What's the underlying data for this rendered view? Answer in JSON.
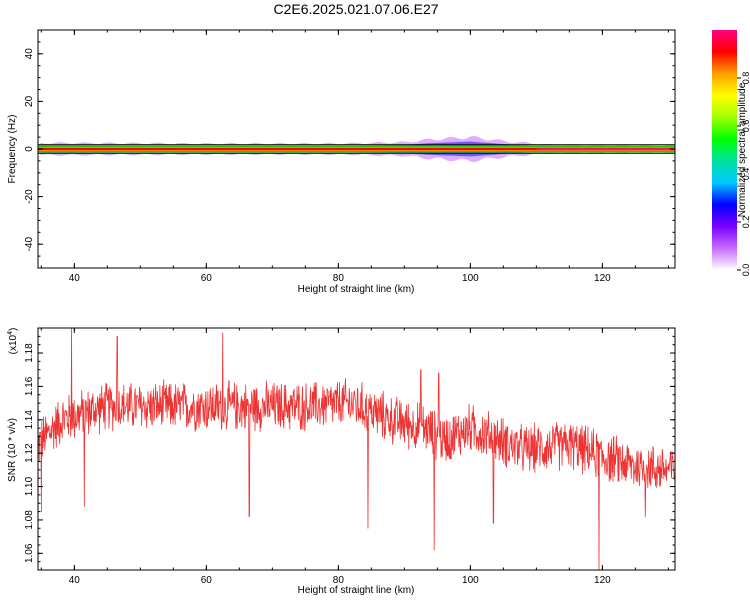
{
  "title": "C2E6.2025.021.07.06.E27",
  "colors": {
    "snr_line": "#ee3333",
    "frame": "#000000",
    "background": "#ffffff"
  },
  "chart_data": [
    {
      "type": "heatmap",
      "xlabel": "Height of straight line (km)",
      "ylabel": "Frequency (Hz)",
      "xlim": [
        34.5,
        131
      ],
      "ylim": [
        -50,
        50
      ],
      "x_ticks": [
        "40",
        "60",
        "80",
        "100",
        "120"
      ],
      "x_tick_values": [
        40,
        60,
        80,
        100,
        120
      ],
      "y_ticks": [
        "40",
        "20",
        "0",
        "-20",
        "-40"
      ],
      "y_tick_values": [
        40,
        20,
        0,
        -20,
        -40
      ],
      "colorbar": {
        "label": "Normalized spectral amplitude",
        "range": [
          0,
          1
        ],
        "ticks": [
          "0.0",
          "0.2",
          "0.4",
          "0.6",
          "0.8"
        ],
        "tick_values": [
          0,
          0.2,
          0.4,
          0.6,
          0.8
        ],
        "colormap": [
          "#ffffff",
          "#c86bff",
          "#7a00ff",
          "#0000ff",
          "#00c8ff",
          "#00e0a0",
          "#00ff00",
          "#a0ff00",
          "#ffff00",
          "#ffa000",
          "#ff0000",
          "#ff0080"
        ]
      },
      "band": {
        "center_hz": 0,
        "main_halfwidth_hz": 1.5,
        "spread_profile": [
          {
            "x": 35,
            "halfwidth_hz": 2.5,
            "peak": 0.35
          },
          {
            "x": 40,
            "halfwidth_hz": 2.5,
            "peak": 0.35
          },
          {
            "x": 60,
            "halfwidth_hz": 2.2,
            "peak": 0.3
          },
          {
            "x": 80,
            "halfwidth_hz": 2.2,
            "peak": 0.3
          },
          {
            "x": 90,
            "halfwidth_hz": 2.8,
            "peak": 0.4
          },
          {
            "x": 94,
            "halfwidth_hz": 4.0,
            "peak": 0.5
          },
          {
            "x": 100,
            "halfwidth_hz": 5.0,
            "peak": 0.55
          },
          {
            "x": 106,
            "halfwidth_hz": 3.0,
            "peak": 0.35
          },
          {
            "x": 112,
            "halfwidth_hz": 1.8,
            "peak": 0.2
          },
          {
            "x": 131,
            "halfwidth_hz": 1.5,
            "peak": 0.1
          }
        ]
      }
    },
    {
      "type": "line",
      "xlabel": "Height of straight line (km)",
      "ylabel": "SNR (10 * v/v)",
      "y_multiplier": "(x10",
      "y_multiplier_exp": "4",
      "y_multiplier_close": ")",
      "xlim": [
        34.5,
        131
      ],
      "ylim": [
        1.05,
        1.195
      ],
      "x_ticks": [
        "40",
        "60",
        "80",
        "100",
        "120"
      ],
      "x_tick_values": [
        40,
        60,
        80,
        100,
        120
      ],
      "y_ticks": [
        "1.06",
        "1.08",
        "1.10",
        "1.12",
        "1.14",
        "1.16",
        "1.18"
      ],
      "y_tick_values": [
        1.06,
        1.08,
        1.1,
        1.12,
        1.14,
        1.16,
        1.18
      ],
      "series": [
        {
          "color": "#ee3333",
          "trend": [
            [
              34.5,
              1.125
            ],
            [
              38,
              1.14
            ],
            [
              45,
              1.148
            ],
            [
              55,
              1.148
            ],
            [
              65,
              1.148
            ],
            [
              75,
              1.148
            ],
            [
              82,
              1.15
            ],
            [
              88,
              1.14
            ],
            [
              93,
              1.135
            ],
            [
              96,
              1.128
            ],
            [
              100,
              1.135
            ],
            [
              108,
              1.122
            ],
            [
              115,
              1.125
            ],
            [
              120,
              1.118
            ],
            [
              125,
              1.112
            ],
            [
              131,
              1.11
            ]
          ],
          "noise_amplitude": 0.014,
          "spikes": [
            {
              "x": 35.0,
              "y": 1.085
            },
            {
              "x": 39.6,
              "y": 1.195
            },
            {
              "x": 41.5,
              "y": 1.088
            },
            {
              "x": 46.5,
              "y": 1.19
            },
            {
              "x": 62.5,
              "y": 1.192
            },
            {
              "x": 66.5,
              "y": 1.082
            },
            {
              "x": 84.5,
              "y": 1.075
            },
            {
              "x": 92.5,
              "y": 1.17
            },
            {
              "x": 94.5,
              "y": 1.062
            },
            {
              "x": 95.2,
              "y": 1.168
            },
            {
              "x": 103.5,
              "y": 1.078
            },
            {
              "x": 119.5,
              "y": 1.05
            },
            {
              "x": 126.5,
              "y": 1.082
            }
          ]
        }
      ]
    }
  ]
}
